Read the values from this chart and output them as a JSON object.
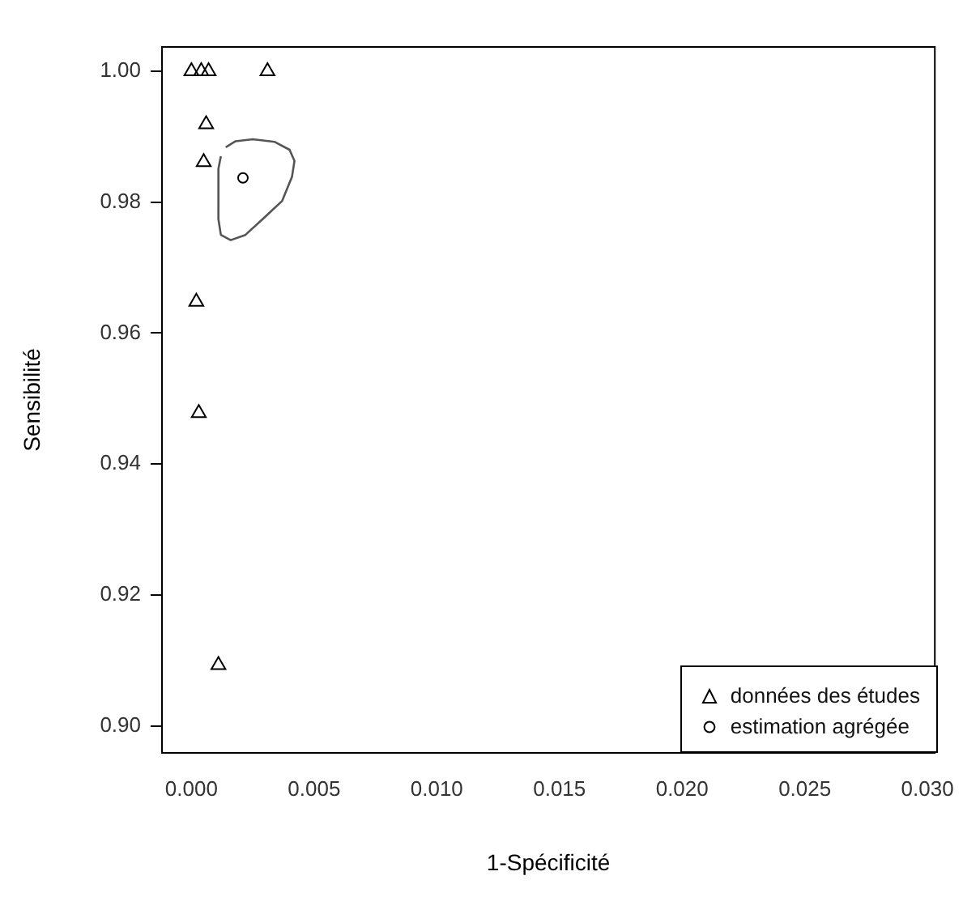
{
  "chart_data": {
    "type": "scatter",
    "xlabel": "1-Spécificité",
    "ylabel": "Sensibilité",
    "xlim": [
      -0.0012,
      0.0303
    ],
    "ylim": [
      0.8959,
      1.0037
    ],
    "xticks": [
      {
        "value": 0,
        "label": "0.000"
      },
      {
        "value": 0.005,
        "label": "0.005"
      },
      {
        "value": 0.01,
        "label": "0.010"
      },
      {
        "value": 0.015,
        "label": "0.015"
      },
      {
        "value": 0.02,
        "label": "0.020"
      },
      {
        "value": 0.025,
        "label": "0.025"
      },
      {
        "value": 0.03,
        "label": "0.030"
      }
    ],
    "yticks": [
      {
        "value": 0.9,
        "label": "0.90"
      },
      {
        "value": 0.92,
        "label": "0.92"
      },
      {
        "value": 0.94,
        "label": "0.94"
      },
      {
        "value": 0.96,
        "label": "0.96"
      },
      {
        "value": 0.98,
        "label": "0.98"
      },
      {
        "value": 1,
        "label": "1.00"
      }
    ],
    "grid": false,
    "legend": "bottom right",
    "series": [
      {
        "name": "données des études",
        "type": "scatter",
        "marker": "triangle",
        "color": "#000000",
        "x": [
          0.0,
          0.0004,
          0.0007,
          0.0031,
          0.0006,
          0.0005,
          0.0002,
          0.0003,
          0.0011
        ],
        "values": [
          1.0,
          1.0,
          1.0,
          1.0,
          0.9919,
          0.9861,
          0.9648,
          0.9478,
          0.9093
        ]
      },
      {
        "name": "estimation agrégée",
        "type": "scatter",
        "marker": "circle",
        "color": "#000000",
        "x": [
          0.0021
        ],
        "values": [
          0.9837
        ]
      },
      {
        "type": "line",
        "marker": "none",
        "color": "#555555",
        "x": [
          0.0014,
          0.0018,
          0.0025,
          0.0034,
          0.004,
          0.0042,
          0.0041,
          0.0037,
          0.0029,
          0.0022,
          0.0016,
          0.0012,
          0.0011,
          0.0011,
          0.0011,
          0.0012
        ],
        "values": [
          0.9884,
          0.9893,
          0.9896,
          0.9892,
          0.988,
          0.9863,
          0.9839,
          0.9802,
          0.9774,
          0.975,
          0.9742,
          0.975,
          0.9774,
          0.9815,
          0.9851,
          0.987
        ]
      }
    ]
  }
}
